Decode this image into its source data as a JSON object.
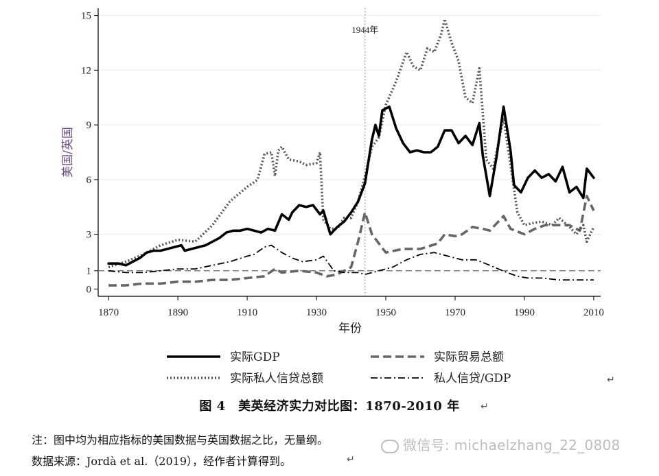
{
  "chart_data": {
    "type": "line",
    "title": "",
    "xlabel": "年份",
    "ylabel": "美国/英国",
    "xlim": [
      1867,
      2012
    ],
    "ylim": [
      -0.4,
      15.4
    ],
    "x_ticks": [
      1870,
      1890,
      1910,
      1930,
      1950,
      1970,
      1990,
      2010
    ],
    "y_ticks": [
      0,
      1,
      3,
      6,
      9,
      12,
      15
    ],
    "reference_line": {
      "y": 1,
      "style": "dashed"
    },
    "annotation": {
      "x": 1944,
      "label": "1944年",
      "style": "dotted-vertical"
    },
    "legend_position": "bottom",
    "series": [
      {
        "name": "实际GDP",
        "style": "solid",
        "color": "#000000",
        "points": [
          [
            1870,
            1.4
          ],
          [
            1873,
            1.4
          ],
          [
            1875,
            1.3
          ],
          [
            1877,
            1.5
          ],
          [
            1879,
            1.7
          ],
          [
            1881,
            2.0
          ],
          [
            1883,
            2.1
          ],
          [
            1885,
            2.1
          ],
          [
            1887,
            2.2
          ],
          [
            1889,
            2.3
          ],
          [
            1891,
            2.4
          ],
          [
            1892,
            2.1
          ],
          [
            1894,
            2.2
          ],
          [
            1896,
            2.3
          ],
          [
            1898,
            2.4
          ],
          [
            1900,
            2.6
          ],
          [
            1902,
            2.8
          ],
          [
            1904,
            3.1
          ],
          [
            1906,
            3.2
          ],
          [
            1908,
            3.2
          ],
          [
            1910,
            3.3
          ],
          [
            1912,
            3.2
          ],
          [
            1914,
            3.1
          ],
          [
            1916,
            3.3
          ],
          [
            1918,
            3.2
          ],
          [
            1920,
            4.1
          ],
          [
            1922,
            3.8
          ],
          [
            1923,
            4.2
          ],
          [
            1925,
            4.6
          ],
          [
            1927,
            4.5
          ],
          [
            1929,
            4.6
          ],
          [
            1931,
            4.1
          ],
          [
            1932,
            4.3
          ],
          [
            1934,
            3.0
          ],
          [
            1936,
            3.4
          ],
          [
            1938,
            3.7
          ],
          [
            1940,
            4.2
          ],
          [
            1942,
            4.8
          ],
          [
            1944,
            5.8
          ],
          [
            1946,
            8.2
          ],
          [
            1947,
            9.0
          ],
          [
            1948,
            8.4
          ],
          [
            1949,
            9.8
          ],
          [
            1951,
            10.0
          ],
          [
            1953,
            8.8
          ],
          [
            1955,
            8.0
          ],
          [
            1957,
            7.5
          ],
          [
            1959,
            7.6
          ],
          [
            1961,
            7.5
          ],
          [
            1963,
            7.5
          ],
          [
            1965,
            7.8
          ],
          [
            1967,
            8.7
          ],
          [
            1969,
            8.7
          ],
          [
            1971,
            8.0
          ],
          [
            1973,
            8.4
          ],
          [
            1975,
            7.9
          ],
          [
            1977,
            9.1
          ],
          [
            1978,
            7.3
          ],
          [
            1980,
            5.1
          ],
          [
            1982,
            7.3
          ],
          [
            1984,
            10.0
          ],
          [
            1986,
            7.6
          ],
          [
            1987,
            5.7
          ],
          [
            1989,
            5.3
          ],
          [
            1991,
            6.1
          ],
          [
            1993,
            6.5
          ],
          [
            1995,
            6.1
          ],
          [
            1997,
            6.3
          ],
          [
            1999,
            5.9
          ],
          [
            2001,
            6.7
          ],
          [
            2003,
            5.3
          ],
          [
            2005,
            5.6
          ],
          [
            2007,
            5.0
          ],
          [
            2008,
            6.6
          ],
          [
            2010,
            6.1
          ]
        ]
      },
      {
        "name": "实际贸易总额",
        "style": "dashed",
        "color": "#666666",
        "points": [
          [
            1870,
            0.2
          ],
          [
            1875,
            0.2
          ],
          [
            1880,
            0.3
          ],
          [
            1885,
            0.3
          ],
          [
            1890,
            0.4
          ],
          [
            1895,
            0.4
          ],
          [
            1900,
            0.5
          ],
          [
            1905,
            0.5
          ],
          [
            1910,
            0.6
          ],
          [
            1915,
            0.7
          ],
          [
            1918,
            1.1
          ],
          [
            1920,
            0.9
          ],
          [
            1925,
            1.0
          ],
          [
            1930,
            0.9
          ],
          [
            1933,
            0.7
          ],
          [
            1936,
            0.8
          ],
          [
            1940,
            1.2
          ],
          [
            1942,
            2.6
          ],
          [
            1944,
            4.2
          ],
          [
            1946,
            3.0
          ],
          [
            1948,
            2.5
          ],
          [
            1950,
            2.0
          ],
          [
            1955,
            2.2
          ],
          [
            1960,
            2.2
          ],
          [
            1965,
            2.5
          ],
          [
            1967,
            3.0
          ],
          [
            1970,
            2.9
          ],
          [
            1972,
            3.0
          ],
          [
            1975,
            3.4
          ],
          [
            1978,
            3.3
          ],
          [
            1980,
            3.2
          ],
          [
            1984,
            4.0
          ],
          [
            1986,
            3.3
          ],
          [
            1990,
            3.0
          ],
          [
            1993,
            3.3
          ],
          [
            1996,
            3.5
          ],
          [
            2000,
            3.5
          ],
          [
            2003,
            3.5
          ],
          [
            2006,
            3.2
          ],
          [
            2008,
            5.1
          ],
          [
            2010,
            4.3
          ]
        ]
      },
      {
        "name": "实际私人信贷总额",
        "style": "dotted",
        "color": "#555555",
        "points": [
          [
            1870,
            1.2
          ],
          [
            1875,
            1.5
          ],
          [
            1880,
            1.9
          ],
          [
            1885,
            2.4
          ],
          [
            1890,
            2.7
          ],
          [
            1895,
            2.6
          ],
          [
            1900,
            3.5
          ],
          [
            1905,
            4.8
          ],
          [
            1910,
            5.6
          ],
          [
            1913,
            6.0
          ],
          [
            1915,
            7.4
          ],
          [
            1917,
            7.5
          ],
          [
            1918,
            6.2
          ],
          [
            1919,
            7.6
          ],
          [
            1920,
            7.8
          ],
          [
            1922,
            7.1
          ],
          [
            1925,
            7.0
          ],
          [
            1927,
            6.8
          ],
          [
            1930,
            6.9
          ],
          [
            1931,
            7.5
          ],
          [
            1932,
            3.8
          ],
          [
            1934,
            3.3
          ],
          [
            1936,
            3.3
          ],
          [
            1938,
            3.9
          ],
          [
            1940,
            3.9
          ],
          [
            1942,
            4.8
          ],
          [
            1944,
            6.2
          ],
          [
            1946,
            7.8
          ],
          [
            1948,
            8.3
          ],
          [
            1950,
            10.1
          ],
          [
            1953,
            11.4
          ],
          [
            1956,
            13.0
          ],
          [
            1958,
            12.2
          ],
          [
            1960,
            12.0
          ],
          [
            1962,
            13.2
          ],
          [
            1964,
            13.0
          ],
          [
            1966,
            14.0
          ],
          [
            1967,
            14.8
          ],
          [
            1969,
            13.5
          ],
          [
            1971,
            12.5
          ],
          [
            1973,
            10.5
          ],
          [
            1975,
            10.2
          ],
          [
            1977,
            12.1
          ],
          [
            1979,
            7.1
          ],
          [
            1981,
            6.6
          ],
          [
            1984,
            9.4
          ],
          [
            1986,
            6.8
          ],
          [
            1988,
            4.2
          ],
          [
            1990,
            3.5
          ],
          [
            1992,
            3.6
          ],
          [
            1995,
            3.7
          ],
          [
            1998,
            3.5
          ],
          [
            2000,
            3.9
          ],
          [
            2003,
            3.4
          ],
          [
            2005,
            3.0
          ],
          [
            2007,
            3.5
          ],
          [
            2008,
            2.6
          ],
          [
            2010,
            3.4
          ]
        ]
      },
      {
        "name": "私人信贷/GDP",
        "style": "dash-dot",
        "color": "#000000",
        "points": [
          [
            1870,
            1.0
          ],
          [
            1875,
            0.9
          ],
          [
            1880,
            0.9
          ],
          [
            1885,
            1.0
          ],
          [
            1890,
            1.1
          ],
          [
            1895,
            1.1
          ],
          [
            1900,
            1.3
          ],
          [
            1905,
            1.5
          ],
          [
            1910,
            1.8
          ],
          [
            1912,
            1.9
          ],
          [
            1915,
            2.3
          ],
          [
            1917,
            2.4
          ],
          [
            1920,
            2.0
          ],
          [
            1923,
            1.7
          ],
          [
            1926,
            1.5
          ],
          [
            1930,
            1.6
          ],
          [
            1932,
            1.8
          ],
          [
            1935,
            1.0
          ],
          [
            1938,
            0.9
          ],
          [
            1942,
            0.9
          ],
          [
            1944,
            0.8
          ],
          [
            1948,
            1.0
          ],
          [
            1952,
            1.2
          ],
          [
            1956,
            1.6
          ],
          [
            1960,
            1.9
          ],
          [
            1964,
            2.0
          ],
          [
            1968,
            1.8
          ],
          [
            1972,
            1.6
          ],
          [
            1976,
            1.6
          ],
          [
            1980,
            1.3
          ],
          [
            1985,
            0.9
          ],
          [
            1988,
            0.7
          ],
          [
            1991,
            0.6
          ],
          [
            1995,
            0.6
          ],
          [
            2000,
            0.5
          ],
          [
            2005,
            0.5
          ],
          [
            2010,
            0.5
          ]
        ]
      }
    ]
  },
  "legend": [
    {
      "label": "实际GDP",
      "style": "solid"
    },
    {
      "label": "实际贸易总额",
      "style": "dashed"
    },
    {
      "label": "实际私人信贷总额",
      "style": "dotted"
    },
    {
      "label": "私人信贷/GDP",
      "style": "dash-dot"
    }
  ],
  "caption": "图 4　美英经济实力对比图：1870-2010 年",
  "note_1": "注：图中均为相应指标的美国数据与英国数据之比，无量纲。",
  "note_2": "数据来源：Jordà et al.（2019），经作者计算得到。",
  "watermark": "微信号: michaelzhang_22_0808",
  "paragraph_mark": "↵"
}
